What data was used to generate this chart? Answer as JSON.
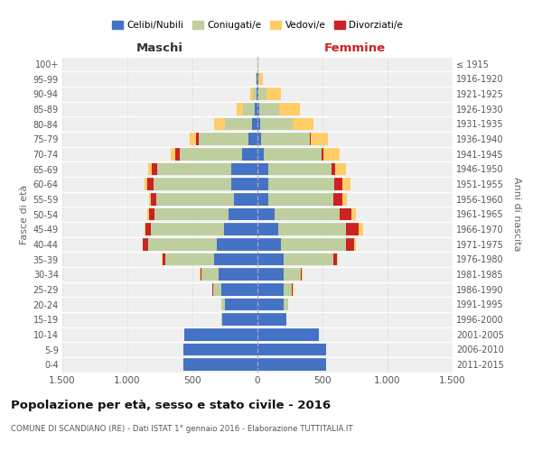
{
  "age_groups": [
    "0-4",
    "5-9",
    "10-14",
    "15-19",
    "20-24",
    "25-29",
    "30-34",
    "35-39",
    "40-44",
    "45-49",
    "50-54",
    "55-59",
    "60-64",
    "65-69",
    "70-74",
    "75-79",
    "80-84",
    "85-89",
    "90-94",
    "95-99",
    "100+"
  ],
  "birth_years": [
    "2011-2015",
    "2006-2010",
    "2001-2005",
    "1996-2000",
    "1991-1995",
    "1986-1990",
    "1981-1985",
    "1976-1980",
    "1971-1975",
    "1966-1970",
    "1961-1965",
    "1956-1960",
    "1951-1955",
    "1946-1950",
    "1941-1945",
    "1936-1940",
    "1931-1935",
    "1926-1930",
    "1921-1925",
    "1916-1920",
    "≤ 1915"
  ],
  "colors": {
    "celibe": "#4472C4",
    "coniugato": "#BFCE9E",
    "vedovo": "#FFCC66",
    "divorziato": "#CC2222"
  },
  "maschi": {
    "celibe": [
      570,
      570,
      560,
      270,
      250,
      280,
      300,
      330,
      310,
      260,
      220,
      180,
      200,
      200,
      120,
      70,
      40,
      20,
      10,
      5,
      0
    ],
    "coniugato": [
      0,
      0,
      0,
      5,
      30,
      60,
      130,
      380,
      530,
      560,
      570,
      600,
      600,
      570,
      480,
      380,
      210,
      90,
      25,
      5,
      0
    ],
    "vedovo": [
      0,
      0,
      0,
      0,
      0,
      5,
      5,
      5,
      5,
      10,
      10,
      10,
      20,
      25,
      35,
      50,
      80,
      50,
      20,
      5,
      0
    ],
    "divorziato": [
      0,
      0,
      0,
      0,
      0,
      5,
      10,
      20,
      40,
      40,
      45,
      40,
      50,
      45,
      30,
      20,
      0,
      0,
      0,
      0,
      0
    ]
  },
  "femmine": {
    "nubile": [
      530,
      530,
      470,
      220,
      200,
      200,
      200,
      200,
      180,
      160,
      130,
      80,
      80,
      80,
      50,
      30,
      20,
      15,
      10,
      5,
      0
    ],
    "coniugata": [
      0,
      0,
      0,
      5,
      35,
      65,
      130,
      380,
      500,
      520,
      500,
      500,
      510,
      490,
      440,
      370,
      250,
      150,
      60,
      10,
      0
    ],
    "vedova": [
      0,
      0,
      0,
      0,
      0,
      5,
      5,
      10,
      20,
      35,
      35,
      35,
      60,
      80,
      120,
      130,
      160,
      160,
      110,
      30,
      5
    ],
    "divorziata": [
      0,
      0,
      0,
      0,
      0,
      5,
      10,
      30,
      60,
      100,
      90,
      70,
      65,
      30,
      20,
      10,
      0,
      0,
      0,
      0,
      0
    ]
  },
  "xlim": 1500,
  "xlabel_left": "Maschi",
  "xlabel_right": "Femmine",
  "ylabel_left": "Fasce di età",
  "ylabel_right": "Anni di nascita",
  "title": "Popolazione per età, sesso e stato civile - 2016",
  "subtitle": "COMUNE DI SCANDIANO (RE) - Dati ISTAT 1° gennaio 2016 - Elaborazione TUTTITALIA.IT",
  "legend_labels": [
    "Celibi/Nubili",
    "Coniugati/e",
    "Vedovi/e",
    "Divorziati/e"
  ],
  "bg_color": "#efefef"
}
